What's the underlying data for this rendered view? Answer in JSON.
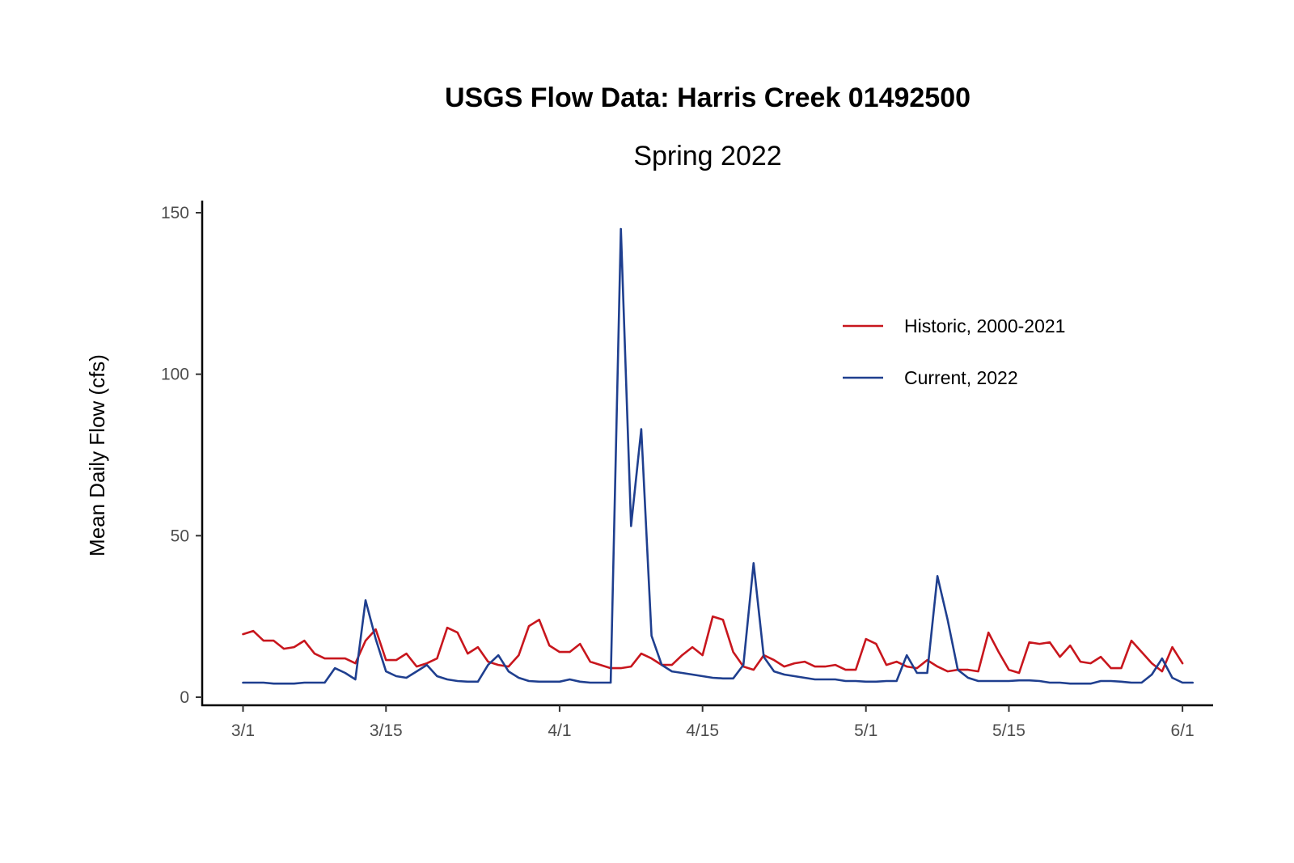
{
  "chart_data": {
    "type": "line",
    "title": "USGS Flow Data: Harris Creek 01492500",
    "subtitle": "Spring 2022",
    "xlabel": "",
    "ylabel": "Mean Daily Flow (cfs)",
    "ylim": [
      0,
      150
    ],
    "yticks": [
      0,
      50,
      100,
      150
    ],
    "xlim": [
      "2022-02-25",
      "2022-06-04"
    ],
    "xticks": [
      {
        "date": "2022-03-01",
        "label": "3/1"
      },
      {
        "date": "2022-03-15",
        "label": "3/15"
      },
      {
        "date": "2022-04-01",
        "label": "4/1"
      },
      {
        "date": "2022-04-15",
        "label": "4/15"
      },
      {
        "date": "2022-05-01",
        "label": "5/1"
      },
      {
        "date": "2022-05-15",
        "label": "5/15"
      },
      {
        "date": "2022-06-01",
        "label": "6/1"
      }
    ],
    "grid": false,
    "legend_position": "top-right",
    "start_date": "2022-03-01",
    "series": [
      {
        "name": "Historic, 2000-2021",
        "color": "#c8161d",
        "values": [
          19.5,
          20.5,
          17.5,
          17.5,
          15,
          15.5,
          17.5,
          13.5,
          12,
          12,
          12,
          10.5,
          17.5,
          21,
          11.5,
          11.5,
          13.5,
          9.5,
          10.5,
          12,
          21.5,
          20,
          13.5,
          15.5,
          11,
          10,
          9.5,
          13,
          22,
          24,
          16,
          14,
          14,
          16.5,
          11,
          10,
          9,
          9,
          9.5,
          13.5,
          12,
          10,
          10,
          13,
          15.5,
          13,
          25,
          24,
          14,
          9.5,
          8.5,
          13,
          11.5,
          9.5,
          10.5,
          11,
          9.5,
          9.5,
          10,
          8.5,
          8.5,
          18,
          16.5,
          10,
          11,
          9.5,
          9,
          11.5,
          9.5,
          8,
          8.5,
          8.5,
          8,
          20,
          14,
          8.5,
          7.5,
          17,
          16.5,
          17,
          12.5,
          16,
          11,
          10.5,
          12.5,
          9,
          9,
          17.5,
          14,
          10.5,
          8,
          15.5,
          10.5
        ]
      },
      {
        "name": "Current, 2022",
        "color": "#1f3f8f",
        "values": [
          4.5,
          4.5,
          4.5,
          4.2,
          4.2,
          4.2,
          4.5,
          4.5,
          4.5,
          9,
          7.5,
          5.5,
          30,
          18,
          8,
          6.5,
          6,
          8,
          10,
          6.5,
          5.5,
          5,
          4.8,
          4.8,
          10,
          13,
          8,
          6,
          5,
          4.8,
          4.8,
          4.8,
          5.5,
          4.8,
          4.5,
          4.5,
          4.5,
          145,
          53,
          83,
          19,
          10,
          8,
          7.5,
          7,
          6.5,
          6,
          5.8,
          5.8,
          10,
          41.5,
          12.5,
          8,
          7,
          6.5,
          6,
          5.5,
          5.5,
          5.5,
          5,
          5,
          4.8,
          4.8,
          5,
          5,
          13,
          7.5,
          7.5,
          37.5,
          24,
          8.5,
          6,
          5,
          5,
          5,
          5,
          5.2,
          5.2,
          5,
          4.5,
          4.5,
          4.2,
          4.2,
          4.2,
          5,
          5,
          4.8,
          4.5,
          4.5,
          7,
          12,
          6,
          4.5,
          4.5
        ]
      }
    ]
  }
}
